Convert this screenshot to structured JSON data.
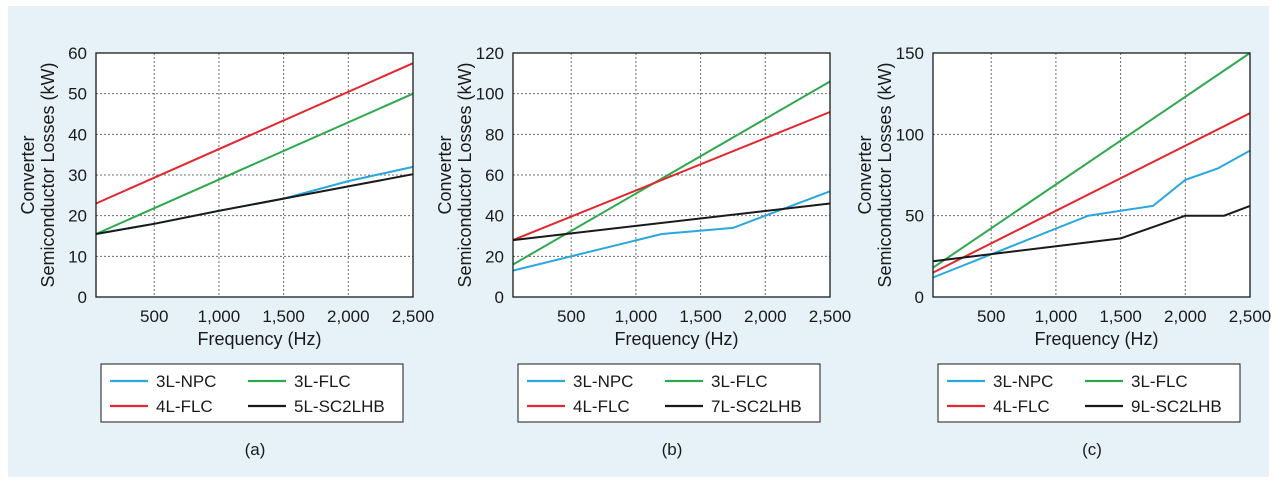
{
  "chart_data": [
    {
      "type": "line",
      "caption": "(a)",
      "xlabel": "Frequency (Hz)",
      "ylabel_line1": "Converter",
      "ylabel_line2": "Semiconductor Losses (kW)",
      "xlim": [
        50,
        2500
      ],
      "ylim": [
        0,
        60
      ],
      "xticks": [
        500,
        1000,
        1500,
        2000,
        2500
      ],
      "xtick_labels": [
        "500",
        "1,000",
        "1,500",
        "2,000",
        "2,500"
      ],
      "yticks": [
        0,
        10,
        20,
        30,
        40,
        50,
        60
      ],
      "ytick_labels": [
        "0",
        "10",
        "20",
        "30",
        "40",
        "50",
        "60"
      ],
      "grid": "dashed",
      "legend_position": "bottom",
      "series": [
        {
          "name": "3L-NPC",
          "color": "#2ba6de",
          "points": [
            [
              50,
              15.5
            ],
            [
              500,
              18
            ],
            [
              1000,
              21.2
            ],
            [
              1500,
              24.2
            ],
            [
              2000,
              28.5
            ],
            [
              2500,
              32
            ]
          ]
        },
        {
          "name": "3L-FLC",
          "color": "#2fa84f",
          "points": [
            [
              50,
              15.5
            ],
            [
              2500,
              50
            ]
          ]
        },
        {
          "name": "4L-FLC",
          "color": "#e0282e",
          "points": [
            [
              50,
              23
            ],
            [
              2500,
              57.5
            ]
          ]
        },
        {
          "name": "5L-SC2LHB",
          "color": "#1a1a1a",
          "points": [
            [
              50,
              15.5
            ],
            [
              500,
              18
            ],
            [
              1000,
              21.2
            ],
            [
              1500,
              24.2
            ],
            [
              2000,
              27.2
            ],
            [
              2500,
              30.2
            ]
          ]
        }
      ]
    },
    {
      "type": "line",
      "caption": "(b)",
      "xlabel": "Frequency (Hz)",
      "ylabel_line1": "Converter",
      "ylabel_line2": "Semiconductor Losses (kW)",
      "xlim": [
        50,
        2500
      ],
      "ylim": [
        0,
        120
      ],
      "xticks": [
        500,
        1000,
        1500,
        2000,
        2500
      ],
      "xtick_labels": [
        "500",
        "1,000",
        "1,500",
        "2,000",
        "2,500"
      ],
      "yticks": [
        0,
        20,
        40,
        60,
        80,
        100,
        120
      ],
      "ytick_labels": [
        "0",
        "20",
        "40",
        "60",
        "80",
        "100",
        "120"
      ],
      "grid": "dashed",
      "legend_position": "bottom",
      "series": [
        {
          "name": "3L-NPC",
          "color": "#2ba6de",
          "points": [
            [
              50,
              13
            ],
            [
              1200,
              31
            ],
            [
              1750,
              34
            ],
            [
              2500,
              52
            ]
          ]
        },
        {
          "name": "3L-FLC",
          "color": "#2fa84f",
          "points": [
            [
              50,
              16
            ],
            [
              2500,
              106
            ]
          ]
        },
        {
          "name": "4L-FLC",
          "color": "#e0282e",
          "points": [
            [
              50,
              28
            ],
            [
              2500,
              91
            ]
          ]
        },
        {
          "name": "7L-SC2LHB",
          "color": "#1a1a1a",
          "points": [
            [
              50,
              28
            ],
            [
              2500,
              46
            ]
          ]
        }
      ]
    },
    {
      "type": "line",
      "caption": "(c)",
      "xlabel": "Frequency (Hz)",
      "ylabel_line1": "Converter",
      "ylabel_line2": "Semiconductor Losses (kW)",
      "xlim": [
        50,
        2500
      ],
      "ylim": [
        0,
        150
      ],
      "xticks": [
        500,
        1000,
        1500,
        2000,
        2500
      ],
      "xtick_labels": [
        "500",
        "1,000",
        "1,500",
        "2,000",
        "2,500"
      ],
      "yticks": [
        0,
        50,
        100,
        150
      ],
      "ytick_labels": [
        "0",
        "50",
        "100",
        "150"
      ],
      "grid": "dashed",
      "legend_position": "bottom",
      "series": [
        {
          "name": "3L-NPC",
          "color": "#2ba6de",
          "points": [
            [
              50,
              12
            ],
            [
              1250,
              50
            ],
            [
              1500,
              53
            ],
            [
              1750,
              56
            ],
            [
              2000,
              72
            ],
            [
              2250,
              79
            ],
            [
              2500,
              90
            ]
          ]
        },
        {
          "name": "3L-FLC",
          "color": "#2fa84f",
          "points": [
            [
              50,
              18
            ],
            [
              2500,
              150
            ]
          ]
        },
        {
          "name": "4L-FLC",
          "color": "#e0282e",
          "points": [
            [
              50,
              15
            ],
            [
              2500,
              113
            ]
          ]
        },
        {
          "name": "9L-SC2LHB",
          "color": "#1a1a1a",
          "points": [
            [
              50,
              22
            ],
            [
              1500,
              36
            ],
            [
              2000,
              50
            ],
            [
              2300,
              50
            ],
            [
              2500,
              56
            ]
          ]
        }
      ]
    }
  ]
}
